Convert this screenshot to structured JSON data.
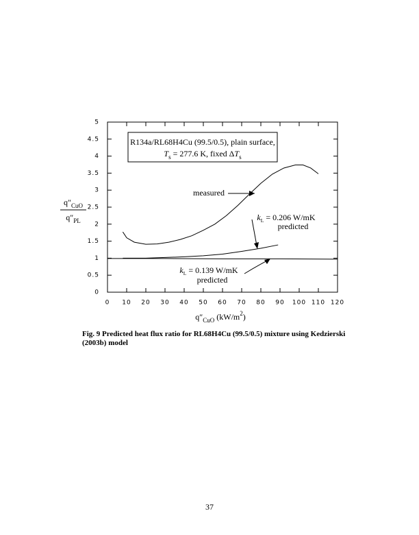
{
  "chart_data": {
    "type": "line",
    "xlabel": {
      "parts": [
        {
          "t": "q″"
        },
        {
          "t": "CuO",
          "sub": true
        },
        {
          "t": " (kW/m"
        },
        {
          "t": "2",
          "sup": true
        },
        {
          "t": ")"
        }
      ]
    },
    "ylabel": {
      "numerator": {
        "parts": [
          {
            "t": "q″"
          },
          {
            "t": "CuO",
            "sub": true
          }
        ]
      },
      "denominator": {
        "parts": [
          {
            "t": "q″"
          },
          {
            "t": "PL",
            "sub": true
          }
        ]
      }
    },
    "xlim": [
      0,
      120
    ],
    "ylim": [
      0,
      5
    ],
    "xticks": [
      0,
      10,
      20,
      30,
      40,
      50,
      60,
      70,
      80,
      90,
      100,
      110,
      120
    ],
    "yticks": [
      0,
      0.5,
      1,
      1.5,
      2,
      2.5,
      3,
      3.5,
      4,
      4.5,
      5
    ],
    "box_text": [
      {
        "parts": [
          {
            "t": "R134a/RL68H4Cu (99.5/0.5), plain surface,"
          }
        ]
      },
      {
        "parts": [
          {
            "t": "T",
            "italic": true
          },
          {
            "t": "s",
            "sub": true
          },
          {
            "t": " = 277.6 K, fixed Δ"
          },
          {
            "t": "T",
            "italic": true
          },
          {
            "t": "s",
            "sub": true
          }
        ]
      }
    ],
    "series": [
      {
        "name": "measured",
        "color": "#000000",
        "x": [
          8,
          10,
          14,
          20,
          26,
          32,
          38,
          44,
          50,
          56,
          62,
          68,
          74,
          80,
          86,
          92,
          98,
          102,
          106,
          110
        ],
        "values": [
          1.77,
          1.6,
          1.47,
          1.41,
          1.42,
          1.47,
          1.55,
          1.66,
          1.82,
          2.0,
          2.25,
          2.55,
          2.88,
          3.2,
          3.47,
          3.65,
          3.74,
          3.74,
          3.65,
          3.48
        ]
      },
      {
        "color": "#000000",
        "x": [
          8,
          20,
          30,
          40,
          50,
          60,
          70,
          80,
          89
        ],
        "values": [
          1.0,
          1.0,
          1.02,
          1.04,
          1.07,
          1.12,
          1.2,
          1.29,
          1.39
        ]
      },
      {
        "color": "#000000",
        "x": [
          0,
          30,
          60,
          90,
          120
        ],
        "values": [
          0.99,
          0.99,
          0.98,
          0.98,
          0.97
        ]
      }
    ],
    "annotations": [
      {
        "parts": [
          {
            "t": "k",
            "italic": true
          },
          {
            "t": "L",
            "sub": true
          },
          {
            "t": " = 0.206 W/mK"
          }
        ]
      },
      {
        "parts": [
          {
            "t": "predicted"
          }
        ]
      },
      {
        "parts": [
          {
            "t": "k",
            "italic": true
          },
          {
            "t": "L",
            "sub": true
          },
          {
            "t": " = 0.139 W/mK"
          }
        ]
      },
      {
        "parts": [
          {
            "t": "predicted"
          }
        ]
      }
    ]
  },
  "caption": "Fig. 9  Predicted heat flux ratio for RL68H4Cu (99.5/0.5) mixture using Kedzierski (2003b) model",
  "page_number": "37"
}
